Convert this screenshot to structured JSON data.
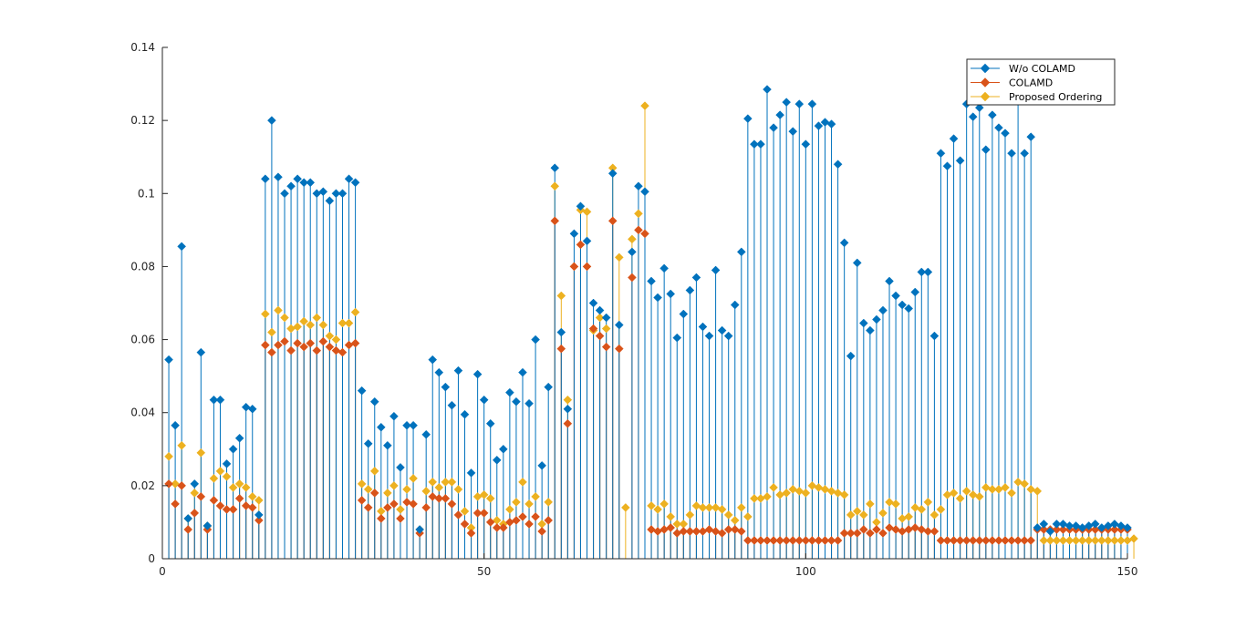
{
  "chart_data": {
    "type": "stem",
    "title": "",
    "xlabel": "",
    "ylabel": "",
    "xlim": [
      0,
      150
    ],
    "ylim": [
      0,
      0.14
    ],
    "xticks": [
      0,
      50,
      100,
      150
    ],
    "xtick_labels": [
      "0",
      "50",
      "100",
      "150"
    ],
    "yticks": [
      0,
      0.02,
      0.04,
      0.06,
      0.08,
      0.1,
      0.12,
      0.14
    ],
    "ytick_labels": [
      "0",
      "0.02",
      "0.04",
      "0.06",
      "0.08",
      "0.1",
      "0.12",
      "0.14"
    ],
    "grid": false,
    "legend_position": "top-right",
    "marker": "diamond",
    "series": [
      {
        "name": "W/o COLAMD",
        "color": "#0072BD",
        "values": [
          0.0545,
          0.0365,
          0.0855,
          0.011,
          0.0205,
          0.0565,
          0.009,
          0.0435,
          0.0435,
          0.026,
          0.03,
          0.033,
          0.0415,
          0.041,
          0.012,
          0.104,
          0.12,
          0.1045,
          0.1,
          0.102,
          0.104,
          0.103,
          0.103,
          0.1,
          0.1005,
          0.098,
          0.1,
          0.1,
          0.104,
          0.103,
          0.046,
          0.0315,
          0.043,
          0.036,
          0.031,
          0.039,
          0.025,
          0.0365,
          0.0365,
          0.008,
          0.034,
          0.0545,
          0.051,
          0.047,
          0.042,
          0.0515,
          0.0395,
          0.0235,
          0.0505,
          0.0435,
          0.037,
          0.027,
          0.03,
          0.0455,
          0.043,
          0.051,
          0.0425,
          0.06,
          0.0255,
          0.047,
          0.107,
          0.062,
          0.041,
          0.089,
          0.0965,
          0.087,
          0.07,
          0.068,
          0.066,
          0.1055,
          0.064,
          0.0,
          0.084,
          0.102,
          0.1005,
          0.076,
          0.0715,
          0.0795,
          0.0725,
          0.0605,
          0.067,
          0.0735,
          0.077,
          0.0635,
          0.061,
          0.079,
          0.0625,
          0.061,
          0.0695,
          0.084,
          0.1205,
          0.1135,
          0.1135,
          0.1285,
          0.118,
          0.1215,
          0.125,
          0.117,
          0.1245,
          0.1135,
          0.1245,
          0.1185,
          0.1195,
          0.119,
          0.108,
          0.0865,
          0.0555,
          0.081,
          0.0645,
          0.0625,
          0.0655,
          0.068,
          0.076,
          0.072,
          0.0695,
          0.0685,
          0.073,
          0.0785,
          0.0785,
          0.061,
          0.111,
          0.1075,
          0.115,
          0.109,
          0.1245,
          0.121,
          0.1235,
          0.112,
          0.1215,
          0.118,
          0.1165,
          0.111,
          0.1255,
          0.111,
          0.1155,
          0.0085,
          0.0095,
          0.0075,
          0.0095,
          0.0095,
          0.009,
          0.009,
          0.0085,
          0.009,
          0.0095,
          0.0085,
          0.009,
          0.0095,
          0.009,
          0.0085
        ]
      },
      {
        "name": "COLAMD",
        "color": "#D95319",
        "values": [
          0.0205,
          0.015,
          0.02,
          0.008,
          0.0125,
          0.017,
          0.008,
          0.016,
          0.0145,
          0.0135,
          0.0135,
          0.0165,
          0.0145,
          0.014,
          0.0105,
          0.0585,
          0.0565,
          0.0585,
          0.0595,
          0.057,
          0.059,
          0.058,
          0.059,
          0.057,
          0.0595,
          0.058,
          0.057,
          0.0565,
          0.0585,
          0.059,
          0.016,
          0.014,
          0.018,
          0.011,
          0.014,
          0.015,
          0.011,
          0.0155,
          0.015,
          0.007,
          0.014,
          0.017,
          0.0165,
          0.0165,
          0.015,
          0.012,
          0.0095,
          0.007,
          0.0125,
          0.0125,
          0.01,
          0.0085,
          0.0085,
          0.01,
          0.0105,
          0.0115,
          0.0095,
          0.0115,
          0.0075,
          0.0105,
          0.0925,
          0.0575,
          0.037,
          0.08,
          0.086,
          0.08,
          0.063,
          0.061,
          0.058,
          0.0925,
          0.0575,
          0.0,
          0.077,
          0.09,
          0.089,
          0.008,
          0.0075,
          0.008,
          0.0085,
          0.007,
          0.0075,
          0.0075,
          0.0075,
          0.0075,
          0.008,
          0.0075,
          0.007,
          0.008,
          0.008,
          0.0075,
          0.005,
          0.005,
          0.005,
          0.005,
          0.005,
          0.005,
          0.005,
          0.005,
          0.005,
          0.005,
          0.005,
          0.005,
          0.005,
          0.005,
          0.005,
          0.007,
          0.007,
          0.007,
          0.008,
          0.007,
          0.008,
          0.007,
          0.0085,
          0.008,
          0.0075,
          0.008,
          0.0085,
          0.008,
          0.0075,
          0.0075,
          0.005,
          0.005,
          0.005,
          0.005,
          0.005,
          0.005,
          0.005,
          0.005,
          0.005,
          0.005,
          0.005,
          0.005,
          0.005,
          0.005,
          0.005,
          0.008,
          0.008,
          0.008,
          0.008,
          0.008,
          0.008,
          0.008,
          0.008,
          0.008,
          0.008,
          0.008,
          0.008,
          0.008,
          0.008,
          0.008
        ]
      },
      {
        "name": "Proposed Ordering",
        "color": "#EDB120",
        "values": [
          0.028,
          0.0205,
          0.031,
          0.011,
          0.018,
          0.029,
          0.009,
          0.022,
          0.024,
          0.0225,
          0.0195,
          0.0205,
          0.0195,
          0.017,
          0.016,
          0.067,
          0.062,
          0.068,
          0.066,
          0.063,
          0.0635,
          0.065,
          0.064,
          0.066,
          0.064,
          0.061,
          0.06,
          0.0645,
          0.0645,
          0.0675,
          0.0205,
          0.019,
          0.024,
          0.013,
          0.018,
          0.02,
          0.0135,
          0.019,
          0.022,
          0.008,
          0.0185,
          0.021,
          0.0195,
          0.021,
          0.021,
          0.019,
          0.013,
          0.0085,
          0.017,
          0.0175,
          0.0165,
          0.0105,
          0.0095,
          0.0135,
          0.0155,
          0.021,
          0.015,
          0.017,
          0.0095,
          0.0155,
          0.102,
          0.072,
          0.0435,
          0.08,
          0.0955,
          0.095,
          0.0625,
          0.066,
          0.063,
          0.107,
          0.0825,
          0.014,
          0.0875,
          0.0945,
          0.124,
          0.0145,
          0.0135,
          0.015,
          0.0115,
          0.0095,
          0.0095,
          0.012,
          0.0145,
          0.014,
          0.014,
          0.014,
          0.0135,
          0.012,
          0.0105,
          0.014,
          0.0115,
          0.0165,
          0.0165,
          0.017,
          0.0195,
          0.0175,
          0.018,
          0.019,
          0.0185,
          0.018,
          0.02,
          0.0195,
          0.019,
          0.0185,
          0.018,
          0.0175,
          0.012,
          0.013,
          0.012,
          0.015,
          0.01,
          0.0125,
          0.0155,
          0.015,
          0.011,
          0.0115,
          0.014,
          0.0135,
          0.0155,
          0.012,
          0.0135,
          0.0175,
          0.018,
          0.0165,
          0.0185,
          0.0175,
          0.017,
          0.0195,
          0.019,
          0.019,
          0.0195,
          0.018,
          0.021,
          0.0205,
          0.019,
          0.0185,
          0.005,
          0.005,
          0.005,
          0.005,
          0.005,
          0.005,
          0.005,
          0.005,
          0.005,
          0.005,
          0.005,
          0.005,
          0.005,
          0.005,
          0.0055
        ]
      }
    ]
  }
}
